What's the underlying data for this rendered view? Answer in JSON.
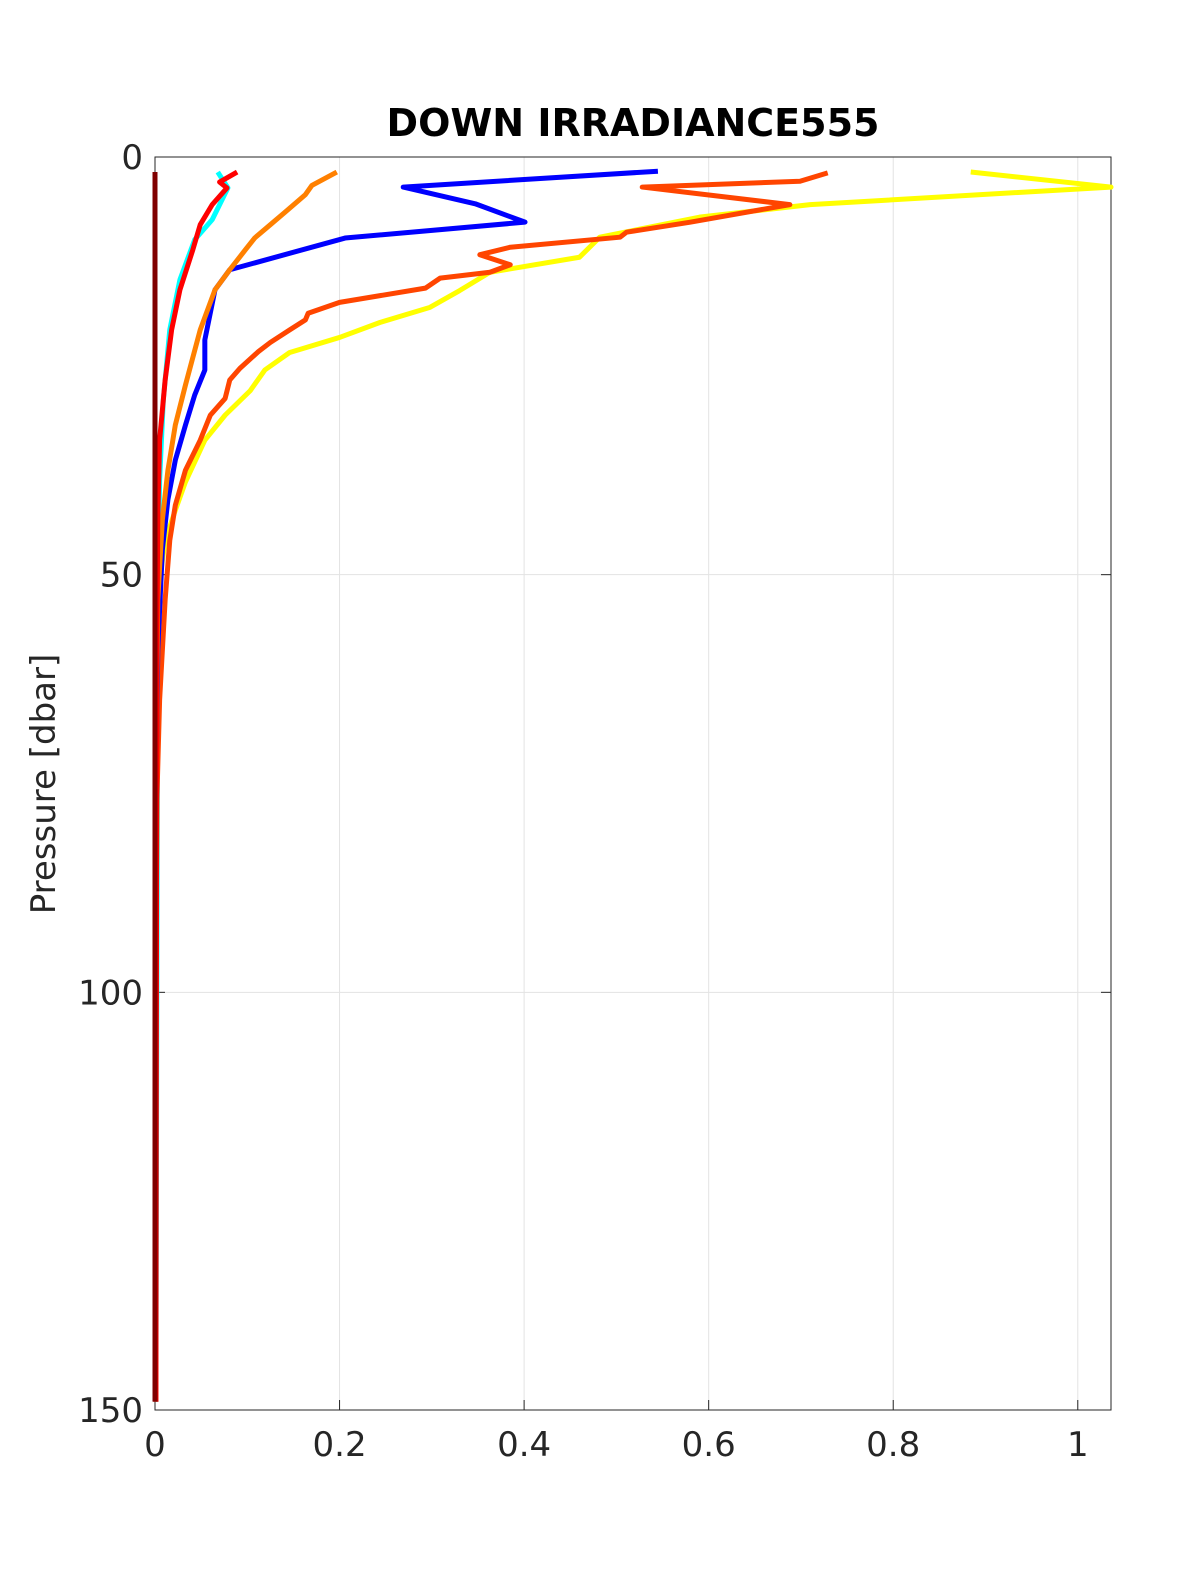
{
  "chart_data": {
    "type": "line",
    "title": "DOWN IRRADIANCE555",
    "y_label": "Pressure [dbar]",
    "xlim": [
      0,
      1.036
    ],
    "ylim": [
      0,
      150
    ],
    "y_reversed": true,
    "grid": true,
    "xticks": [
      0,
      0.2,
      0.4,
      0.6,
      0.8,
      1
    ],
    "yticks": [
      0,
      50,
      100,
      150
    ],
    "series": [
      {
        "color": "#00ffff",
        "x": [
          0.068,
          0.079,
          0.062,
          0.043,
          0.027,
          0.016,
          0.009,
          0.005,
          0.003,
          0.001
        ],
        "y": [
          1.8,
          3.7,
          7.5,
          9.9,
          14.7,
          20.7,
          29.1,
          38.7,
          53,
          149
        ]
      },
      {
        "color": "#ffff00",
        "x": [
          0.884,
          1.036,
          0.71,
          0.59,
          0.482,
          0.46,
          0.363,
          0.33,
          0.298,
          0.244,
          0.2,
          0.146,
          0.119,
          0.103,
          0.076,
          0.054,
          0.033,
          0.022,
          0.011,
          0.005,
          0.003,
          0.002,
          0.001,
          0.001
        ],
        "y": [
          1.8,
          3.6,
          5.7,
          7.2,
          9.6,
          12,
          13.8,
          16,
          18,
          19.8,
          21.6,
          23.4,
          25.5,
          28,
          30.9,
          33.9,
          38.9,
          42.3,
          45.9,
          50.7,
          59,
          77,
          101,
          149
        ]
      },
      {
        "color": "#ff4500",
        "x": [
          0.729,
          0.699,
          0.528,
          0.688,
          0.58,
          0.511,
          0.504,
          0.385,
          0.352,
          0.385,
          0.363,
          0.309,
          0.293,
          0.2,
          0.166,
          0.163,
          0.146,
          0.125,
          0.112,
          0.092,
          0.081,
          0.076,
          0.06,
          0.049,
          0.033,
          0.022,
          0.016,
          0.011,
          0.005,
          0.002,
          0.001,
          0.001
        ],
        "y": [
          1.9,
          2.9,
          3.6,
          5.7,
          7.8,
          9.0,
          9.6,
          10.8,
          11.7,
          12.9,
          13.8,
          14.5,
          15.7,
          17.4,
          18.7,
          19.5,
          20.7,
          22.2,
          23.3,
          25.3,
          26.7,
          28.9,
          30.9,
          33.9,
          37.5,
          41.7,
          45.9,
          53,
          65,
          77,
          101,
          149
        ]
      },
      {
        "color": "#0000ff",
        "x": [
          0.545,
          0.269,
          0.347,
          0.401,
          0.206,
          0.081,
          0.065,
          0.054,
          0.054,
          0.043,
          0.033,
          0.022,
          0.014,
          0.008,
          0.003,
          0.001,
          0.001
        ],
        "y": [
          1.7,
          3.6,
          5.6,
          7.8,
          9.7,
          13.5,
          15.9,
          21.9,
          25.5,
          28.5,
          32.1,
          36.3,
          41,
          47,
          59,
          77,
          149
        ]
      },
      {
        "color": "#ff8000",
        "x": [
          0.197,
          0.17,
          0.163,
          0.141,
          0.125,
          0.108,
          0.098,
          0.081,
          0.065,
          0.049,
          0.033,
          0.022,
          0.014,
          0.008,
          0.003,
          0.001,
          0.001
        ],
        "y": [
          1.8,
          3.4,
          4.5,
          6.6,
          8.1,
          9.7,
          11.1,
          13.5,
          15.9,
          20.7,
          27.3,
          32.1,
          37.5,
          43.4,
          53,
          77,
          149
        ]
      },
      {
        "color": "#ff0000",
        "x": [
          0.089,
          0.07,
          0.078,
          0.062,
          0.049,
          0.041,
          0.027,
          0.018,
          0.011,
          0.005,
          0.003,
          0.002,
          0.001
        ],
        "y": [
          1.8,
          3.0,
          3.7,
          5.7,
          8.1,
          11.1,
          15.9,
          20.7,
          26.7,
          33.9,
          43.4,
          59,
          149
        ]
      },
      {
        "color": "#800000",
        "x": [
          0,
          0
        ],
        "y": [
          1.8,
          149
        ]
      }
    ]
  }
}
